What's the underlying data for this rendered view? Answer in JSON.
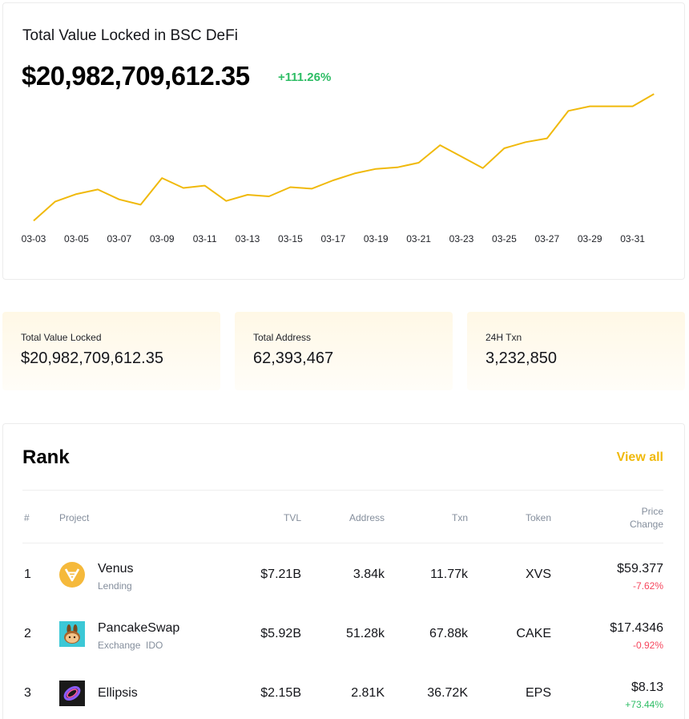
{
  "chart": {
    "title": "Total Value Locked in BSC DeFi",
    "value": "$20,982,709,612.35",
    "change": "+111.26%",
    "line_color": "#f0b90b",
    "x_tick_labels": [
      "03-03",
      "03-05",
      "03-07",
      "03-09",
      "03-11",
      "03-13",
      "03-15",
      "03-17",
      "03-19",
      "03-21",
      "03-23",
      "03-25",
      "03-27",
      "03-29",
      "03-31"
    ]
  },
  "chart_data": {
    "type": "line",
    "title": "Total Value Locked in BSC DeFi",
    "x": [
      "03-03",
      "03-04",
      "03-05",
      "03-06",
      "03-07",
      "03-08",
      "03-09",
      "03-10",
      "03-11",
      "03-12",
      "03-13",
      "03-14",
      "03-15",
      "03-16",
      "03-17",
      "03-18",
      "03-19",
      "03-20",
      "03-21",
      "03-22",
      "03-23",
      "03-24",
      "03-25",
      "03-26",
      "03-27",
      "03-28",
      "03-29",
      "03-30",
      "03-31",
      "04-01"
    ],
    "series": [
      {
        "values": [
          3.0,
          5.5,
          6.5,
          7.1,
          5.8,
          5.1,
          8.6,
          7.3,
          7.6,
          5.6,
          6.4,
          6.2,
          7.4,
          7.2,
          8.3,
          9.2,
          9.8,
          10.0,
          10.6,
          12.9,
          11.4,
          9.9,
          12.5,
          13.3,
          13.8,
          17.4,
          18.0,
          18.0,
          18.0,
          19.6
        ]
      }
    ],
    "ylim": [
      0,
      21
    ],
    "grid": false,
    "legend": "none"
  },
  "stats": [
    {
      "label": "Total Value Locked",
      "value": "$20,982,709,612.35"
    },
    {
      "label": "Total Address",
      "value": "62,393,467"
    },
    {
      "label": "24H Txn",
      "value": "3,232,850"
    }
  ],
  "rank": {
    "title": "Rank",
    "view_all": "View all",
    "headers": {
      "num": "#",
      "project": "Project",
      "tvl": "TVL",
      "address": "Address",
      "txn": "Txn",
      "token": "Token",
      "price_line1": "Price",
      "price_line2": "Change"
    },
    "rows": [
      {
        "rank": "1",
        "name": "Venus",
        "category": "Lending",
        "tvl": "$7.21B",
        "address": "3.84k",
        "txn": "11.77k",
        "token": "XVS",
        "price": "$59.377",
        "change": "-7.62%",
        "change_dir": "neg",
        "icon": "venus-logo-icon"
      },
      {
        "rank": "2",
        "name": "PancakeSwap",
        "category": "Exchange  IDO",
        "tvl": "$5.92B",
        "address": "51.28k",
        "txn": "67.88k",
        "token": "CAKE",
        "price": "$17.4346",
        "change": "-0.92%",
        "change_dir": "neg",
        "icon": "pancakeswap-logo-icon"
      },
      {
        "rank": "3",
        "name": "Ellipsis",
        "category": "",
        "tvl": "$2.15B",
        "address": "2.81K",
        "txn": "36.72K",
        "token": "EPS",
        "price": "$8.13",
        "change": "+73.44%",
        "change_dir": "pos",
        "icon": "ellipsis-logo-icon"
      }
    ]
  },
  "colors": {
    "accent": "#f0b90b",
    "positive": "#2ebd65",
    "negative": "#f6465d",
    "muted": "#848e9c"
  }
}
